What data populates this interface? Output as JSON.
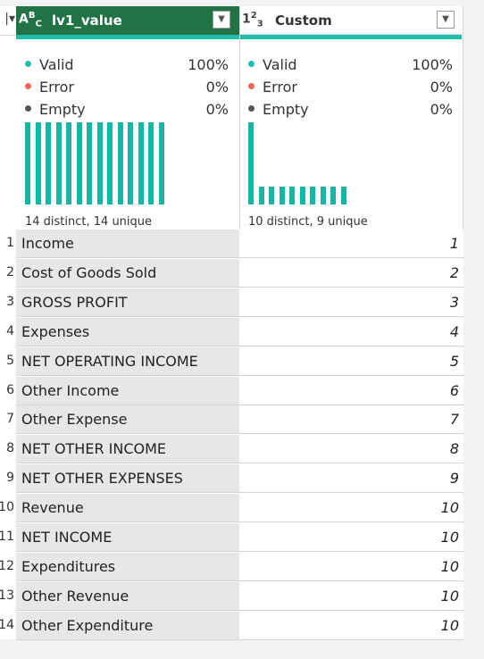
{
  "columns": [
    {
      "type_icon": "ABC",
      "type_icon_name": "text-type-icon",
      "title": "lv1_value",
      "selected": true,
      "stats": [
        {
          "label": "Valid",
          "pct": "100%",
          "color": "#1ebfab"
        },
        {
          "label": "Error",
          "pct": "0%",
          "color": "#f4625b"
        },
        {
          "label": "Empty",
          "pct": "0%",
          "color": "#555555"
        }
      ],
      "distribution": {
        "caption": "14 distinct, 14 unique",
        "bar_heights_pct": [
          100,
          100,
          100,
          100,
          100,
          100,
          100,
          100,
          100,
          100,
          100,
          100,
          100,
          100
        ]
      }
    },
    {
      "type_icon": "123",
      "type_icon_name": "number-type-icon",
      "title": "Custom",
      "selected": false,
      "stats": [
        {
          "label": "Valid",
          "pct": "100%",
          "color": "#1ebfab"
        },
        {
          "label": "Error",
          "pct": "0%",
          "color": "#f4625b"
        },
        {
          "label": "Empty",
          "pct": "0%",
          "color": "#555555"
        }
      ],
      "distribution": {
        "caption": "10 distinct, 9 unique",
        "bar_heights_pct": [
          100,
          22,
          22,
          22,
          22,
          22,
          22,
          22,
          22,
          22
        ]
      }
    }
  ],
  "row_numbers": [
    "1",
    "2",
    "3",
    "4",
    "5",
    "6",
    "7",
    "8",
    "9",
    "10",
    "11",
    "12",
    "13",
    "14"
  ],
  "rows": [
    {
      "lv1_value": "Income",
      "custom": "1"
    },
    {
      "lv1_value": "Cost of Goods Sold",
      "custom": "2"
    },
    {
      "lv1_value": "GROSS PROFIT",
      "custom": "3"
    },
    {
      "lv1_value": "Expenses",
      "custom": "4"
    },
    {
      "lv1_value": "NET OPERATING INCOME",
      "custom": "5"
    },
    {
      "lv1_value": "Other Income",
      "custom": "6"
    },
    {
      "lv1_value": "Other Expense",
      "custom": "7"
    },
    {
      "lv1_value": "NET OTHER INCOME",
      "custom": "8"
    },
    {
      "lv1_value": "NET OTHER EXPENSES",
      "custom": "9"
    },
    {
      "lv1_value": "Revenue",
      "custom": "10"
    },
    {
      "lv1_value": "NET INCOME",
      "custom": "10"
    },
    {
      "lv1_value": "Expenditures",
      "custom": "10"
    },
    {
      "lv1_value": "Other Revenue",
      "custom": "10"
    },
    {
      "lv1_value": "Other Expenditure",
      "custom": "10"
    }
  ]
}
